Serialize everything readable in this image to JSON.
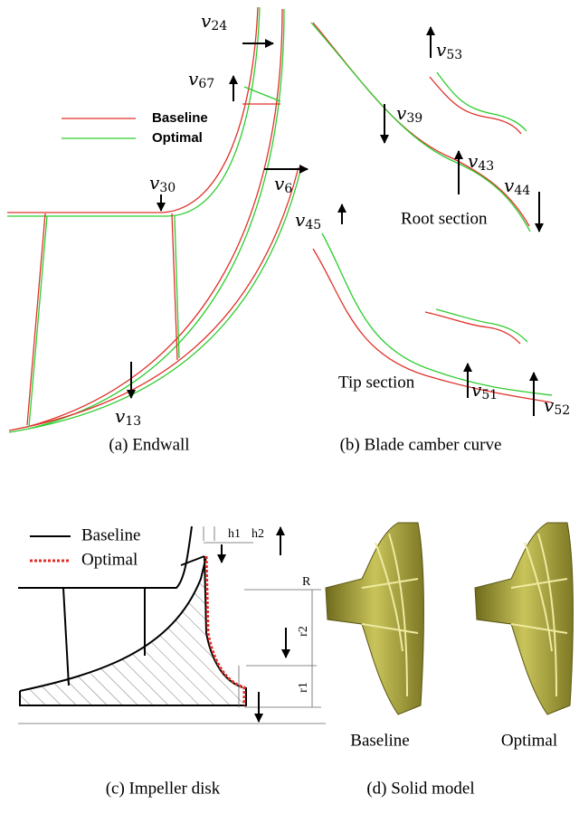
{
  "panel_a": {
    "labels": [
      {
        "base": "v",
        "sub": "24"
      },
      {
        "base": "v",
        "sub": "67"
      },
      {
        "base": "v",
        "sub": "30"
      },
      {
        "base": "v",
        "sub": "6"
      },
      {
        "base": "v",
        "sub": "13"
      }
    ],
    "legend": [
      "Baseline",
      "Optimal"
    ],
    "caption": "(a) Endwall"
  },
  "panel_b": {
    "labels": [
      {
        "base": "v",
        "sub": "53"
      },
      {
        "base": "v",
        "sub": "39"
      },
      {
        "base": "v",
        "sub": "43"
      },
      {
        "base": "v",
        "sub": "44"
      },
      {
        "base": "v",
        "sub": "45"
      },
      {
        "base": "v",
        "sub": "51"
      },
      {
        "base": "v",
        "sub": "52"
      }
    ],
    "sections": [
      "Root section",
      "Tip section"
    ],
    "caption": "(b) Blade camber curve"
  },
  "panel_c": {
    "legend": [
      "Baseline",
      "Optimal"
    ],
    "dimensions": [
      "h1",
      "h2",
      "R",
      "r2",
      "r1"
    ],
    "caption": "(c) Impeller disk"
  },
  "panel_d": {
    "labels": [
      "Baseline",
      "Optimal"
    ],
    "caption": "(d) Solid model"
  }
}
